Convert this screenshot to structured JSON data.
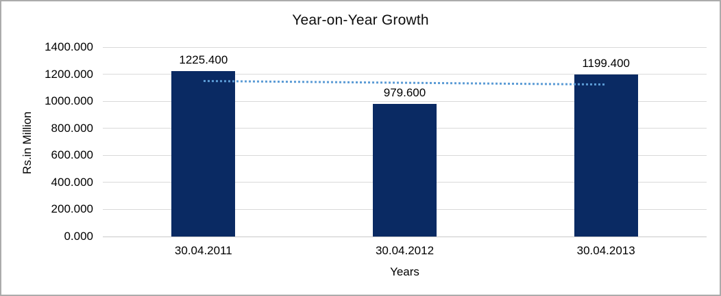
{
  "chart_data": {
    "type": "bar",
    "title": "Year-on-Year Growth",
    "categories": [
      "30.04.2011",
      "30.04.2012",
      "30.04.2013"
    ],
    "values": [
      1225.4,
      979.6,
      1199.4
    ],
    "data_labels": [
      "1225.400",
      "979.600",
      "1199.400"
    ],
    "xlabel": "Years",
    "ylabel": "Rs.in Million",
    "ylim": [
      0,
      1400
    ],
    "ytick_step": 200,
    "ytick_labels": [
      "0.000",
      "200.000",
      "400.000",
      "600.000",
      "800.000",
      "1000.000",
      "1200.000",
      "1400.000"
    ],
    "grid": true,
    "legend": "none",
    "trendline": {
      "type": "linear",
      "style": "dotted",
      "start_value": 1148,
      "end_value": 1122,
      "spans_categories": [
        0,
        2
      ]
    },
    "colors": {
      "bar": "#0A2A63",
      "trendline": "#5B9BD5",
      "gridline": "#D9D9D9",
      "axis_line": "#C8C8C8",
      "text": "#000000",
      "frame_border": "#ABABAB",
      "background": "#FFFFFF"
    }
  }
}
